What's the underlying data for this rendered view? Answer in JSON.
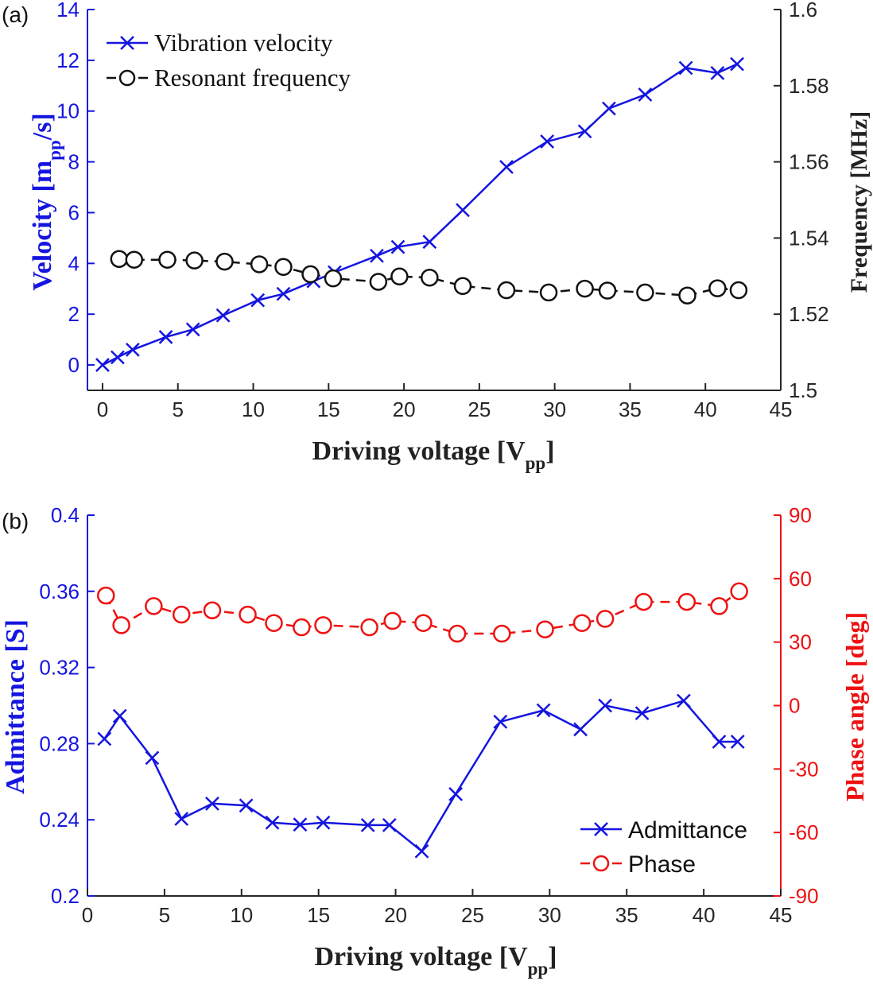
{
  "colors": {
    "blue": "#1515e0",
    "red": "#ee1111",
    "black": "#111111",
    "axis_black": "#262626"
  },
  "chart_data": [
    {
      "panel_label": "(a)",
      "type": "line",
      "xlabel_main": "Driving voltage [V",
      "xlabel_sub": "pp",
      "xlabel_end": "]",
      "xlim": [
        -1,
        45
      ],
      "xticks": [
        0,
        5,
        10,
        15,
        20,
        25,
        30,
        35,
        40,
        45
      ],
      "left_axis": {
        "label_main": "Velocity [m",
        "label_sub": "pp",
        "label_end": "/s]",
        "lim": [
          -1,
          14
        ],
        "ticks": [
          0,
          2,
          4,
          6,
          8,
          10,
          12,
          14
        ]
      },
      "right_axis": {
        "label": "Frequency [MHz]",
        "lim": [
          1.5,
          1.6
        ],
        "ticks": [
          1.5,
          1.52,
          1.54,
          1.56,
          1.58,
          1.6
        ]
      },
      "series": [
        {
          "name": "Vibration velocity",
          "axis": "left",
          "x": [
            0,
            1,
            2,
            4.2,
            6,
            8,
            10.3,
            12,
            14,
            15.4,
            18.2,
            19.6,
            21.7,
            23.9,
            26.8,
            29.5,
            32,
            33.6,
            36,
            38.7,
            40.8,
            42.1
          ],
          "y": [
            0,
            0.3,
            0.6,
            1.1,
            1.4,
            1.95,
            2.55,
            2.8,
            3.3,
            3.65,
            4.3,
            4.65,
            4.85,
            6.1,
            7.8,
            8.8,
            9.2,
            10.1,
            10.65,
            11.7,
            11.5,
            11.85
          ]
        },
        {
          "name": "Resonant frequency",
          "axis": "right",
          "x": [
            1.1,
            2.1,
            4.3,
            6.1,
            8.1,
            10.4,
            12,
            13.8,
            15.3,
            18.3,
            19.7,
            21.7,
            23.9,
            26.8,
            29.6,
            32,
            33.5,
            36,
            38.8,
            40.8,
            42.2
          ],
          "y": [
            1.5345,
            1.5343,
            1.5343,
            1.5341,
            1.5338,
            1.5331,
            1.5324,
            1.5305,
            1.5294,
            1.5285,
            1.5299,
            1.5296,
            1.5274,
            1.5263,
            1.5257,
            1.5267,
            1.5262,
            1.5257,
            1.5249,
            1.5268,
            1.5263
          ]
        }
      ]
    },
    {
      "panel_label": "(b)",
      "type": "line",
      "xlabel_main": "Driving voltage [V",
      "xlabel_sub": "pp",
      "xlabel_end": "]",
      "xlim": [
        0,
        45
      ],
      "xticks": [
        0,
        5,
        10,
        15,
        20,
        25,
        30,
        35,
        40,
        45
      ],
      "left_axis": {
        "label": "Admittance [S]",
        "lim": [
          0.2,
          0.4
        ],
        "ticks": [
          0.2,
          0.24,
          0.28,
          0.32,
          0.36,
          0.4
        ],
        "tick_labels": [
          "0.2",
          "0.24",
          "0.28",
          "0.32",
          "0.36",
          "0.4"
        ]
      },
      "right_axis": {
        "label": "Phase angle [deg]",
        "lim": [
          -90,
          90
        ],
        "ticks": [
          -90,
          -60,
          -30,
          0,
          30,
          60,
          90
        ]
      },
      "series": [
        {
          "name": "Admittance",
          "axis": "left",
          "x": [
            1.1,
            2.1,
            4.2,
            6.1,
            8.1,
            10.3,
            12,
            13.8,
            15.3,
            18.2,
            19.6,
            21.7,
            23.9,
            26.8,
            29.6,
            32,
            33.6,
            36,
            38.7,
            41,
            42.2
          ],
          "y": [
            0.2825,
            0.2945,
            0.2725,
            0.2405,
            0.2485,
            0.2475,
            0.2385,
            0.2375,
            0.2385,
            0.2372,
            0.2372,
            0.2235,
            0.2535,
            0.2915,
            0.2975,
            0.2875,
            0.3,
            0.296,
            0.3025,
            0.281,
            0.281
          ]
        },
        {
          "name": "Phase",
          "axis": "right",
          "x": [
            1.2,
            2.2,
            4.3,
            6.1,
            8.1,
            10.4,
            12.1,
            13.9,
            15.3,
            18.3,
            19.8,
            21.8,
            24,
            26.9,
            29.7,
            32.1,
            33.6,
            36.1,
            38.9,
            41,
            42.3
          ],
          "y": [
            52,
            38,
            47,
            43,
            45,
            43,
            39,
            37,
            38,
            37,
            40,
            39,
            34,
            34,
            36,
            39,
            41,
            49,
            49,
            47,
            54
          ]
        }
      ]
    }
  ]
}
